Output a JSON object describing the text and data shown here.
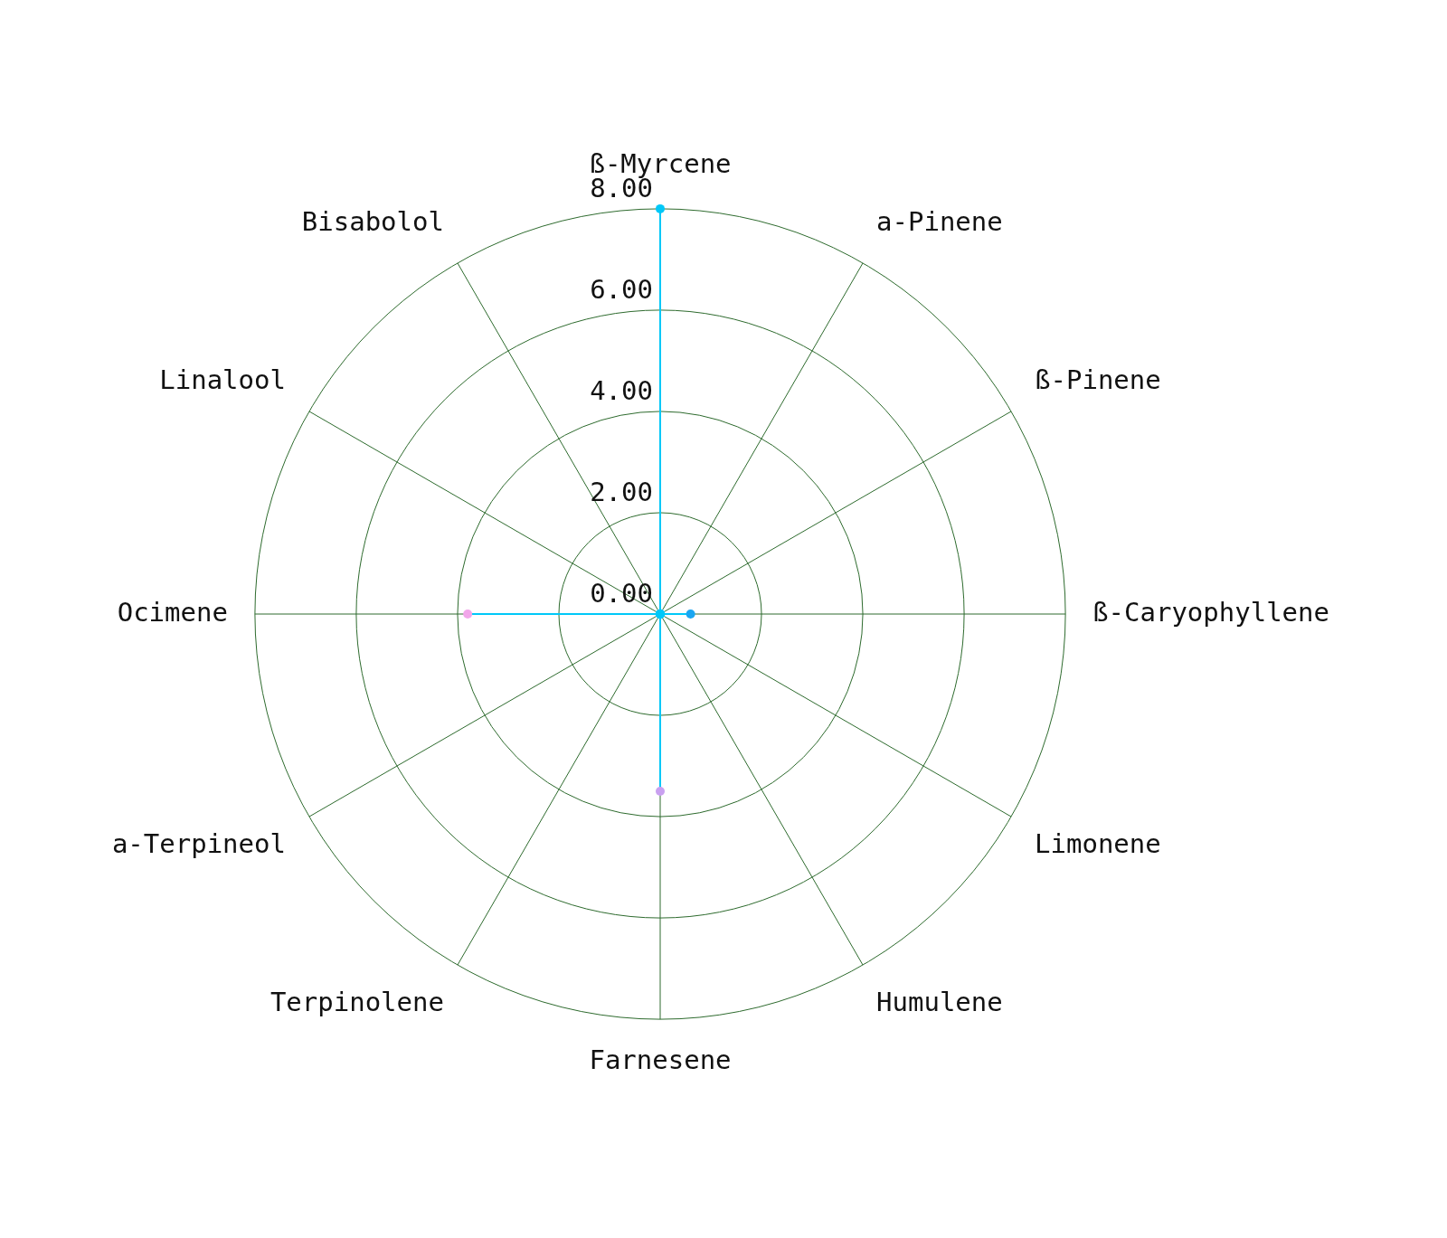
{
  "chart_data": {
    "type": "radar",
    "categories": [
      "ß-Myrcene",
      "a-Pinene",
      "ß-Pinene",
      "ß-Caryophyllene",
      "Limonene",
      "Humulene",
      "Farnesene",
      "Terpinolene",
      "a-Terpineol",
      "Ocimene",
      "Linalool",
      "Bisabolol"
    ],
    "series": [
      {
        "values": [
          8.0,
          0,
          0,
          0.6,
          0,
          0,
          3.5,
          0,
          0,
          3.8,
          0,
          0
        ],
        "color": "#00c8f8",
        "colors": [
          "#00c8f8",
          "#00c8f8",
          "#00c8f8",
          "#1aa6f2",
          "#00c8f8",
          "#00c8f8",
          "#c9a0f0",
          "#00c8f8",
          "#00c8f8",
          "#f2a6ea",
          "#00c8f8",
          "#00c8f8"
        ]
      }
    ],
    "ylim": [
      0,
      8
    ],
    "yticks": [
      {
        "value": 0,
        "label": "0.00"
      },
      {
        "value": 2,
        "label": "2.00"
      },
      {
        "value": 4,
        "label": "4.00"
      },
      {
        "value": 6,
        "label": "6.00"
      },
      {
        "value": 8,
        "label": "8.00"
      }
    ],
    "grid": true,
    "legend": false
  }
}
